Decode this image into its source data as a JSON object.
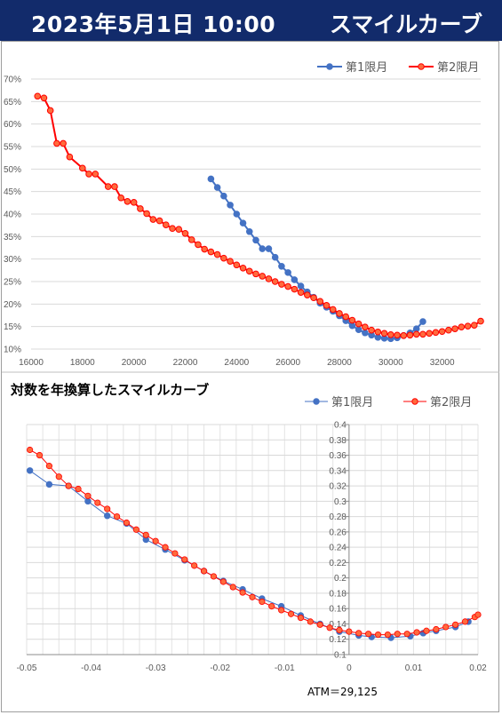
{
  "header": {
    "datetime": "2023年5月1日 10:00",
    "title": "スマイルカーブ"
  },
  "chart_data": [
    {
      "type": "line",
      "title": "",
      "xlim": [
        16000,
        33500
      ],
      "ylim": [
        10,
        70
      ],
      "x_ticks": [
        16000,
        18000,
        20000,
        22000,
        24000,
        26000,
        28000,
        30000,
        32000
      ],
      "y_ticks": [
        "10%",
        "15%",
        "20%",
        "25%",
        "30%",
        "35%",
        "40%",
        "45%",
        "50%",
        "55%",
        "60%",
        "65%",
        "70%"
      ],
      "grid": true,
      "legend_position": "top-right",
      "series": [
        {
          "name": "第1限月",
          "color": "#4472c4",
          "points": [
            [
              23000,
              47.8
            ],
            [
              23250,
              45.9
            ],
            [
              23500,
              44.0
            ],
            [
              23750,
              42.0
            ],
            [
              24000,
              40.0
            ],
            [
              24250,
              38.0
            ],
            [
              24500,
              36.1
            ],
            [
              24750,
              34.2
            ],
            [
              25000,
              32.3
            ],
            [
              25250,
              32.3
            ],
            [
              25500,
              30.4
            ],
            [
              25750,
              28.4
            ],
            [
              26000,
              27.0
            ],
            [
              26250,
              25.4
            ],
            [
              26500,
              24.0
            ],
            [
              26750,
              22.7
            ],
            [
              27000,
              21.5
            ],
            [
              27250,
              20.2
            ],
            [
              27500,
              19.3
            ],
            [
              27750,
              18.4
            ],
            [
              28000,
              17.4
            ],
            [
              28250,
              16.3
            ],
            [
              28500,
              15.2
            ],
            [
              28750,
              14.3
            ],
            [
              29000,
              13.6
            ],
            [
              29250,
              13.1
            ],
            [
              29500,
              12.6
            ],
            [
              29750,
              12.4
            ],
            [
              30000,
              12.3
            ],
            [
              30250,
              12.5
            ],
            [
              30500,
              13.0
            ],
            [
              30750,
              13.6
            ],
            [
              31000,
              14.5
            ],
            [
              31250,
              16.1
            ]
          ]
        },
        {
          "name": "第2限月",
          "color": "#ff0000",
          "points": [
            [
              16250,
              66.2
            ],
            [
              16500,
              65.8
            ],
            [
              16750,
              63.0
            ],
            [
              17000,
              55.7
            ],
            [
              17250,
              55.7
            ],
            [
              17500,
              52.7
            ],
            [
              18000,
              50.2
            ],
            [
              18250,
              48.9
            ],
            [
              18500,
              48.9
            ],
            [
              19000,
              46.1
            ],
            [
              19250,
              46.1
            ],
            [
              19500,
              43.6
            ],
            [
              19750,
              42.8
            ],
            [
              20000,
              42.6
            ],
            [
              20250,
              41.2
            ],
            [
              20500,
              40.1
            ],
            [
              20750,
              38.8
            ],
            [
              21000,
              38.5
            ],
            [
              21250,
              37.6
            ],
            [
              21500,
              36.8
            ],
            [
              21750,
              36.6
            ],
            [
              22000,
              35.7
            ],
            [
              22250,
              34.3
            ],
            [
              22500,
              33.2
            ],
            [
              22750,
              32.2
            ],
            [
              23000,
              31.6
            ],
            [
              23250,
              31.0
            ],
            [
              23500,
              30.2
            ],
            [
              23750,
              29.5
            ],
            [
              24000,
              28.7
            ],
            [
              24250,
              28.0
            ],
            [
              24500,
              27.3
            ],
            [
              24750,
              26.7
            ],
            [
              25000,
              26.2
            ],
            [
              25250,
              25.6
            ],
            [
              25500,
              25.0
            ],
            [
              25750,
              24.4
            ],
            [
              26000,
              23.9
            ],
            [
              26250,
              23.3
            ],
            [
              26500,
              22.6
            ],
            [
              26750,
              22.0
            ],
            [
              27000,
              21.4
            ],
            [
              27250,
              20.6
            ],
            [
              27500,
              19.7
            ],
            [
              27750,
              18.8
            ],
            [
              28000,
              17.9
            ],
            [
              28250,
              17.2
            ],
            [
              28500,
              16.4
            ],
            [
              28750,
              15.6
            ],
            [
              29000,
              14.9
            ],
            [
              29250,
              14.2
            ],
            [
              29500,
              13.8
            ],
            [
              29750,
              13.5
            ],
            [
              30000,
              13.2
            ],
            [
              30250,
              13.1
            ],
            [
              30500,
              13.0
            ],
            [
              30750,
              13.1
            ],
            [
              31000,
              13.3
            ],
            [
              31250,
              13.3
            ],
            [
              31500,
              13.5
            ],
            [
              31750,
              13.7
            ],
            [
              32000,
              13.9
            ],
            [
              32250,
              14.2
            ],
            [
              32500,
              14.5
            ],
            [
              32750,
              14.9
            ],
            [
              33000,
              15.1
            ],
            [
              33250,
              15.3
            ],
            [
              33500,
              16.2
            ]
          ]
        }
      ]
    },
    {
      "type": "line",
      "title": "対数を年換算したスマイルカーブ",
      "xlim": [
        -0.05,
        0.02
      ],
      "ylim": [
        0.1,
        0.4
      ],
      "x_ticks": [
        "-0.05",
        "-0.04",
        "-0.03",
        "-0.02",
        "-0.01",
        "0",
        "0.01",
        "0.02"
      ],
      "y_ticks": [
        "0.1",
        "0.12",
        "0.14",
        "0.16",
        "0.18",
        "0.2",
        "0.22",
        "0.24",
        "0.26",
        "0.28",
        "0.3",
        "0.32",
        "0.34",
        "0.36",
        "0.38",
        "0.4"
      ],
      "grid": true,
      "legend_position": "top-right",
      "annotation": "ATM＝29,125",
      "series": [
        {
          "name": "第1限月",
          "color": "#4472c4",
          "points": [
            [
              -0.0495,
              0.34
            ],
            [
              -0.0465,
              0.322
            ],
            [
              -0.0435,
              0.32
            ],
            [
              -0.0405,
              0.3
            ],
            [
              -0.0375,
              0.281
            ],
            [
              -0.0345,
              0.271
            ],
            [
              -0.0315,
              0.25
            ],
            [
              -0.0285,
              0.237
            ],
            [
              -0.0255,
              0.223
            ],
            [
              -0.0225,
              0.209
            ],
            [
              -0.0195,
              0.196
            ],
            [
              -0.0165,
              0.185
            ],
            [
              -0.0135,
              0.173
            ],
            [
              -0.0105,
              0.163
            ],
            [
              -0.0075,
              0.151
            ],
            [
              -0.0045,
              0.14
            ],
            [
              -0.0015,
              0.13
            ],
            [
              0.0015,
              0.125
            ],
            [
              0.0035,
              0.123
            ],
            [
              0.0065,
              0.122
            ],
            [
              0.0095,
              0.124
            ],
            [
              0.0115,
              0.128
            ],
            [
              0.0135,
              0.131
            ],
            [
              0.0165,
              0.136
            ],
            [
              0.0185,
              0.143
            ]
          ]
        },
        {
          "name": "第2限月",
          "color": "#ff0000",
          "points": [
            [
              -0.0495,
              0.367
            ],
            [
              -0.048,
              0.36
            ],
            [
              -0.0465,
              0.346
            ],
            [
              -0.045,
              0.332
            ],
            [
              -0.0435,
              0.32
            ],
            [
              -0.042,
              0.316
            ],
            [
              -0.0405,
              0.307
            ],
            [
              -0.039,
              0.298
            ],
            [
              -0.0375,
              0.29
            ],
            [
              -0.036,
              0.28
            ],
            [
              -0.0345,
              0.272
            ],
            [
              -0.033,
              0.263
            ],
            [
              -0.0315,
              0.256
            ],
            [
              -0.03,
              0.248
            ],
            [
              -0.0285,
              0.24
            ],
            [
              -0.027,
              0.232
            ],
            [
              -0.0255,
              0.224
            ],
            [
              -0.024,
              0.216
            ],
            [
              -0.0225,
              0.209
            ],
            [
              -0.021,
              0.202
            ],
            [
              -0.0195,
              0.195
            ],
            [
              -0.018,
              0.188
            ],
            [
              -0.0165,
              0.181
            ],
            [
              -0.015,
              0.175
            ],
            [
              -0.0135,
              0.169
            ],
            [
              -0.012,
              0.163
            ],
            [
              -0.0105,
              0.158
            ],
            [
              -0.009,
              0.153
            ],
            [
              -0.0075,
              0.148
            ],
            [
              -0.006,
              0.143
            ],
            [
              -0.0045,
              0.139
            ],
            [
              -0.003,
              0.135
            ],
            [
              -0.0015,
              0.132
            ],
            [
              0.0,
              0.13
            ],
            [
              0.0015,
              0.128
            ],
            [
              0.003,
              0.127
            ],
            [
              0.0045,
              0.126
            ],
            [
              0.006,
              0.126
            ],
            [
              0.0075,
              0.127
            ],
            [
              0.009,
              0.127
            ],
            [
              0.0105,
              0.129
            ],
            [
              0.012,
              0.131
            ],
            [
              0.0135,
              0.133
            ],
            [
              0.015,
              0.136
            ],
            [
              0.0165,
              0.139
            ],
            [
              0.018,
              0.143
            ],
            [
              0.0195,
              0.149
            ],
            [
              0.02,
              0.152
            ]
          ]
        }
      ]
    }
  ]
}
